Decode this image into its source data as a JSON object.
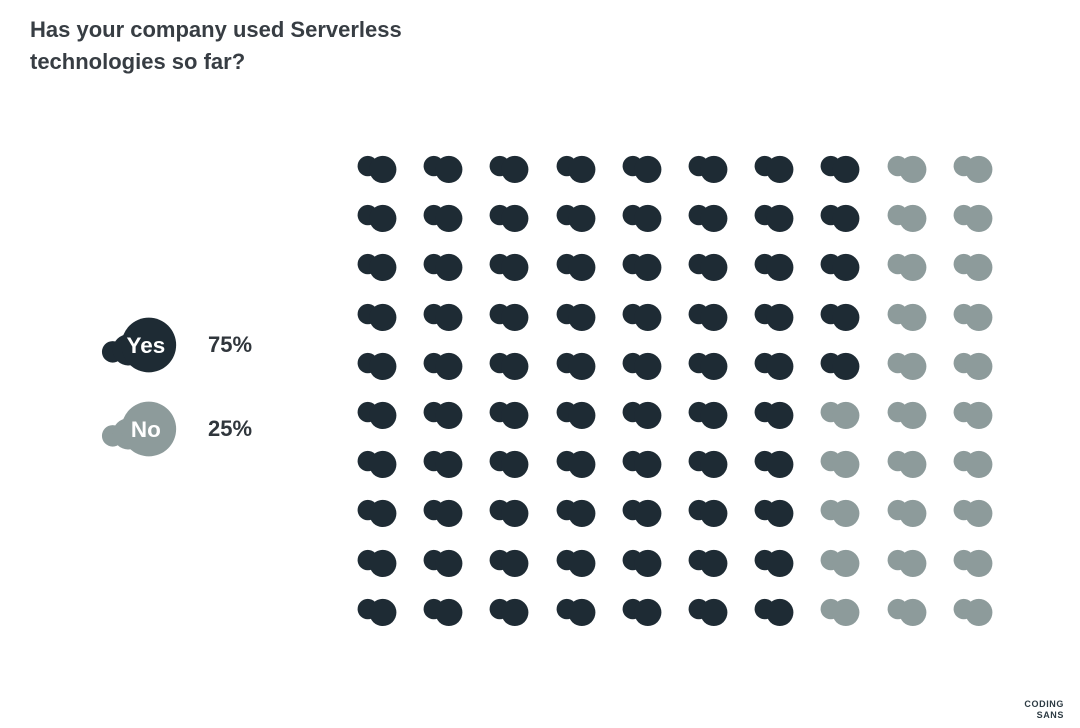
{
  "title": "Has your company used Serverless technologies so far?",
  "legend": [
    {
      "label": "Yes",
      "value": "75%",
      "color": "#1e2b34"
    },
    {
      "label": "No",
      "value": "25%",
      "color": "#8d9b9b"
    }
  ],
  "chart_data": {
    "type": "pictogram",
    "title": "Has your company used Serverless technologies so far?",
    "categories": [
      "Yes",
      "No"
    ],
    "values": [
      75,
      25
    ],
    "unit": "%",
    "icon": "cloud",
    "legend_position": "left",
    "colors": {
      "yes": "#1e2b34",
      "no": "#8d9b9b"
    },
    "grid": {
      "rows": 10,
      "cols": 10,
      "total_icons": 100,
      "filled_per_row": [
        8,
        8,
        8,
        8,
        8,
        7,
        7,
        7,
        7,
        7
      ]
    }
  },
  "logo": {
    "top": "CODING",
    "bottom": "SANS"
  }
}
